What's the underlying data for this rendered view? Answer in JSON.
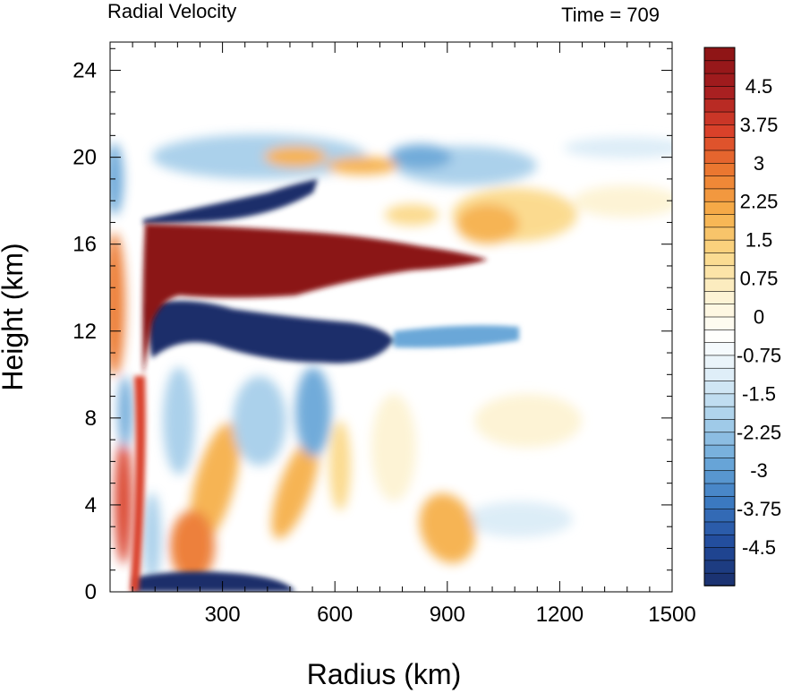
{
  "chart_data": {
    "type": "heatmap",
    "title_left": "Radial Velocity",
    "title_right": "Time = 709",
    "xlabel": "Radius (km)",
    "ylabel": "Height (km)",
    "xlim": [
      0,
      1500
    ],
    "ylim": [
      0,
      25.3
    ],
    "x_ticks": [
      "300",
      "600",
      "900",
      "1200",
      "1500"
    ],
    "x_tick_values": [
      300,
      600,
      900,
      1200,
      1500
    ],
    "y_ticks": [
      "0",
      "4",
      "8",
      "12",
      "16",
      "20",
      "24"
    ],
    "y_tick_values": [
      0,
      4,
      8,
      12,
      16,
      20,
      24
    ],
    "colorbar": {
      "min": -5.25,
      "max": 5.25,
      "step": 0.25,
      "tick_labels": [
        "4.5",
        "3.75",
        "3",
        "2.25",
        "1.5",
        "0.75",
        "0",
        "-0.75",
        "-1.5",
        "-2.25",
        "-3",
        "-3.75",
        "-4.5"
      ],
      "tick_values": [
        4.5,
        3.75,
        3,
        2.25,
        1.5,
        0.75,
        0,
        -0.75,
        -1.5,
        -2.25,
        -3,
        -3.75,
        -4.5
      ],
      "colors": [
        "#1a2f6b",
        "#214a9b",
        "#3a78c0",
        "#6aa7d8",
        "#a7cfea",
        "#dbecf7",
        "#ffffff",
        "#fdf3d3",
        "#fbd98a",
        "#f6b04b",
        "#ec7a30",
        "#d9402a",
        "#a51d20",
        "#8b1414"
      ]
    },
    "features": [
      {
        "name": "upper outflow jet",
        "sign": "positive",
        "r_range": [
          140,
          1050
        ],
        "z_center": 15.3,
        "peak": 5.5
      },
      {
        "name": "upper inflow layer",
        "sign": "negative",
        "r_range": [
          130,
          650
        ],
        "z_center": 11.7,
        "peak": -5.5
      },
      {
        "name": "boundary-layer inflow",
        "sign": "negative",
        "r_range": [
          70,
          500
        ],
        "z_center": 0.3,
        "peak": -5.5
      },
      {
        "name": "inflow above outflow",
        "sign": "negative",
        "r_range": [
          170,
          420
        ],
        "z_center": 17.5,
        "peak": -5.0
      },
      {
        "name": "eyewall outflow column",
        "sign": "positive",
        "r_range": [
          80,
          130
        ],
        "z_center": 6,
        "peak": 4.5
      }
    ]
  }
}
